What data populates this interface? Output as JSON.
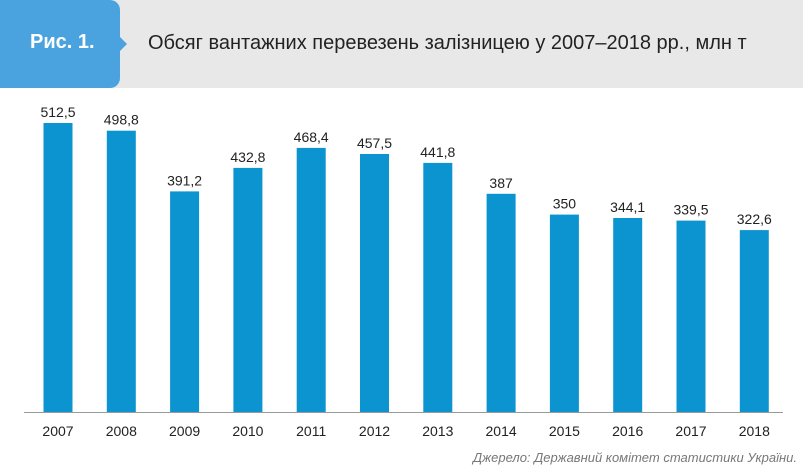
{
  "header": {
    "figure_label": "Рис. 1.",
    "title": "Обсяг вантажних перевезень залізницею у 2007–2018 рр., млн т"
  },
  "source": "Джерело: Державний комітет статистики України.",
  "colors": {
    "bar": "#0b94d0",
    "tag": "#4aa3df",
    "header_bg": "#e8e8e8"
  },
  "chart_data": {
    "type": "bar",
    "title": "Обсяг вантажних перевезень залізницею у 2007–2018 рр., млн т",
    "xlabel": "",
    "ylabel": "",
    "categories": [
      "2007",
      "2008",
      "2009",
      "2010",
      "2011",
      "2012",
      "2013",
      "2014",
      "2015",
      "2016",
      "2017",
      "2018"
    ],
    "values": [
      512.5,
      498.8,
      391.2,
      432.8,
      468.4,
      457.5,
      441.8,
      387,
      350,
      344.1,
      339.5,
      322.6
    ],
    "value_labels": [
      "512,5",
      "498,8",
      "391,2",
      "432,8",
      "468,4",
      "457,5",
      "441,8",
      "387",
      "350",
      "344,1",
      "339,5",
      "322,6"
    ],
    "ylim": [
      0,
      512.5
    ],
    "grid": false,
    "legend": "none"
  }
}
